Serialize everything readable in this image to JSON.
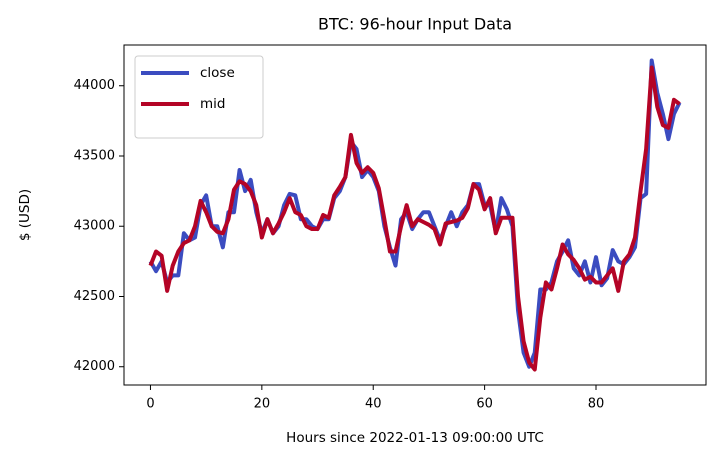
{
  "chart_data": {
    "type": "line",
    "title": "BTC: 96-hour Input Data",
    "x_label": "Hours since 2022-01-13 09:00:00 UTC",
    "y_label": "$ (USD)",
    "x": [
      0,
      1,
      2,
      3,
      4,
      5,
      6,
      7,
      8,
      9,
      10,
      11,
      12,
      13,
      14,
      15,
      16,
      17,
      18,
      19,
      20,
      21,
      22,
      23,
      24,
      25,
      26,
      27,
      28,
      29,
      30,
      31,
      32,
      33,
      34,
      35,
      36,
      37,
      38,
      39,
      40,
      41,
      42,
      43,
      44,
      45,
      46,
      47,
      48,
      49,
      50,
      51,
      52,
      53,
      54,
      55,
      56,
      57,
      58,
      59,
      60,
      61,
      62,
      63,
      64,
      65,
      66,
      67,
      68,
      69,
      70,
      71,
      72,
      73,
      74,
      75,
      76,
      77,
      78,
      79,
      80,
      81,
      82,
      83,
      84,
      85,
      86,
      87,
      88,
      89,
      90,
      91,
      92,
      93,
      94,
      95
    ],
    "series": [
      {
        "name": "close",
        "color": "#3b4cc0",
        "values": [
          42750,
          42680,
          42750,
          42600,
          42650,
          42650,
          42950,
          42900,
          42920,
          43150,
          43220,
          43000,
          43000,
          42850,
          43100,
          43100,
          43400,
          43250,
          43330,
          43100,
          42950,
          43050,
          42950,
          43000,
          43150,
          43230,
          43220,
          43050,
          43050,
          43000,
          42980,
          43050,
          43050,
          43200,
          43250,
          43350,
          43600,
          43550,
          43350,
          43400,
          43350,
          43250,
          43000,
          42850,
          42720,
          43050,
          43100,
          42980,
          43050,
          43100,
          43100,
          43000,
          42900,
          43000,
          43100,
          43000,
          43100,
          43150,
          43300,
          43300,
          43150,
          43150,
          42960,
          43200,
          43120,
          43000,
          42400,
          42100,
          42000,
          42100,
          42550,
          42550,
          42600,
          42750,
          42820,
          42900,
          42700,
          42650,
          42750,
          42600,
          42780,
          42580,
          42630,
          42830,
          42750,
          42730,
          42780,
          42850,
          43200,
          43230,
          44180,
          43950,
          43800,
          43620,
          43800,
          43880
        ]
      },
      {
        "name": "mid",
        "color": "#b40426",
        "values": [
          42720,
          42820,
          42790,
          42540,
          42720,
          42820,
          42880,
          42900,
          43000,
          43180,
          43100,
          43000,
          42960,
          42950,
          43050,
          43260,
          43320,
          43300,
          43250,
          43150,
          42920,
          43050,
          42950,
          43020,
          43100,
          43200,
          43100,
          43080,
          43000,
          42980,
          42980,
          43080,
          43060,
          43220,
          43280,
          43350,
          43650,
          43450,
          43380,
          43420,
          43380,
          43270,
          43050,
          42820,
          42820,
          43000,
          43150,
          43000,
          43050,
          43030,
          43010,
          42980,
          42870,
          43020,
          43030,
          43040,
          43060,
          43130,
          43300,
          43260,
          43120,
          43200,
          42950,
          43060,
          43060,
          43060,
          42500,
          42180,
          42030,
          41980,
          42350,
          42600,
          42550,
          42700,
          42870,
          42800,
          42760,
          42700,
          42620,
          42640,
          42600,
          42600,
          42650,
          42700,
          42540,
          42750,
          42800,
          42920,
          43250,
          43550,
          44130,
          43850,
          43720,
          43700,
          43900,
          43870
        ]
      }
    ],
    "xlim": [
      -4.75,
      99.75
    ],
    "ylim": [
      41870,
      44290
    ],
    "xticks": [
      0,
      20,
      40,
      60,
      80
    ],
    "yticks": [
      42000,
      42500,
      43000,
      43500,
      44000
    ],
    "legend": "upper left"
  }
}
